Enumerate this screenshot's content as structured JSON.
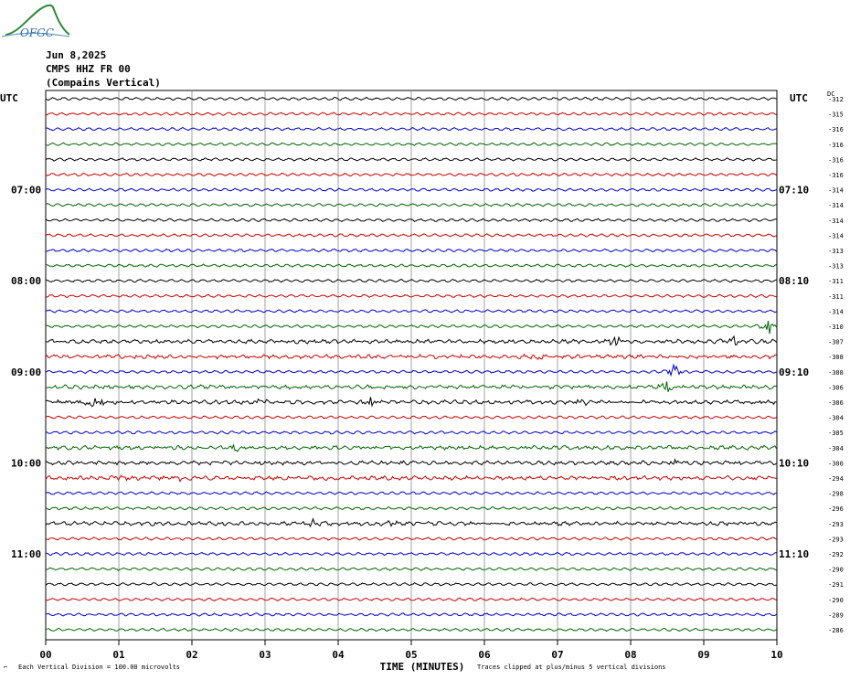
{
  "header": {
    "logo_text": "OFGC",
    "date": "Jun 8,2025",
    "station": "CMPS HHZ FR 00",
    "site": "(Compains Vertical)"
  },
  "chart_data": {
    "type": "line",
    "title": "Jun 8,2025",
    "xlabel": "TIME (MINUTES)",
    "ylabel": "UTC",
    "right_label": "UTC",
    "dc_header": "DC",
    "x_range": [
      0,
      10
    ],
    "x_ticks": [
      "00",
      "01",
      "02",
      "03",
      "04",
      "05",
      "06",
      "07",
      "08",
      "09",
      "10"
    ],
    "grid": true,
    "trace_colors": [
      "#000000",
      "#cc0000",
      "#0000cc",
      "#006600"
    ],
    "rows": 36,
    "left_time_labels": [
      {
        "row": 6,
        "label": "07:00"
      },
      {
        "row": 12,
        "label": "08:00"
      },
      {
        "row": 18,
        "label": "09:00"
      },
      {
        "row": 24,
        "label": "10:00"
      },
      {
        "row": 30,
        "label": "11:00"
      }
    ],
    "right_time_labels": [
      {
        "row": 6,
        "label": "07:10"
      },
      {
        "row": 12,
        "label": "08:10"
      },
      {
        "row": 18,
        "label": "09:10"
      },
      {
        "row": 24,
        "label": "10:10"
      },
      {
        "row": 30,
        "label": "11:10"
      }
    ],
    "dc_offsets": [
      -312,
      -315,
      -316,
      -316,
      -316,
      -316,
      -314,
      -314,
      -314,
      -314,
      -313,
      -313,
      -311,
      -311,
      -314,
      -310,
      -307,
      -308,
      -308,
      -306,
      -306,
      -304,
      -305,
      -304,
      -300,
      -294,
      -298,
      -296,
      -293,
      -293,
      -292,
      -290,
      -291,
      -290,
      -289,
      -286
    ],
    "events": [
      {
        "row": 15,
        "minute": 9.9,
        "amp": 9
      },
      {
        "row": 16,
        "minute": 7.8,
        "amp": 8
      },
      {
        "row": 16,
        "minute": 9.4,
        "amp": 6
      },
      {
        "row": 17,
        "minute": 6.7,
        "amp": 5
      },
      {
        "row": 18,
        "minute": 8.6,
        "amp": 8
      },
      {
        "row": 19,
        "minute": 8.5,
        "amp": 8
      },
      {
        "row": 20,
        "minute": 0.65,
        "amp": 14
      },
      {
        "row": 20,
        "minute": 2.95,
        "amp": 5
      },
      {
        "row": 20,
        "minute": 4.45,
        "amp": 6
      },
      {
        "row": 20,
        "minute": 7.35,
        "amp": 4
      },
      {
        "row": 23,
        "minute": 2.6,
        "amp": 5
      },
      {
        "row": 24,
        "minute": 8.6,
        "amp": 4
      },
      {
        "row": 25,
        "minute": 1.0,
        "amp": 3
      },
      {
        "row": 25,
        "minute": 1.85,
        "amp": 4
      },
      {
        "row": 28,
        "minute": 3.65,
        "amp": 4
      },
      {
        "row": 28,
        "minute": 4.7,
        "amp": 3
      }
    ],
    "noisy_rows": [
      16,
      17,
      19,
      20,
      23,
      24,
      25,
      28
    ]
  },
  "footer": {
    "vertical_division": "Each Vertical Division =  100.00 microvolts",
    "time_label": "TIME (MINUTES)",
    "clip_note": "Traces clipped at plus/minus 5 vertical divisions"
  }
}
